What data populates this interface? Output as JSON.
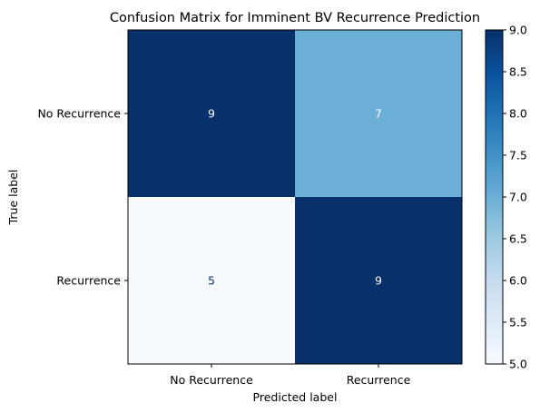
{
  "chart_data": {
    "type": "heatmap",
    "title": "Confusion Matrix for Imminent BV Recurrence Prediction",
    "xlabel": "Predicted label",
    "ylabel": "True label",
    "x_categories": [
      "No Recurrence",
      "Recurrence"
    ],
    "y_categories": [
      "No Recurrence",
      "Recurrence"
    ],
    "values": [
      [
        9,
        7
      ],
      [
        5,
        9
      ]
    ],
    "colormap": "Blues",
    "colorbar": {
      "range": [
        5.0,
        9.0
      ],
      "ticks": [
        "5.0",
        "5.5",
        "6.0",
        "6.5",
        "7.0",
        "7.5",
        "8.0",
        "8.5",
        "9.0"
      ]
    },
    "colors": {
      "max": "#08306b",
      "mid_7": "#6baed6",
      "min": "#f7fbff",
      "text_on_dark": "#ffffff",
      "text_on_light": "#08306b"
    }
  }
}
